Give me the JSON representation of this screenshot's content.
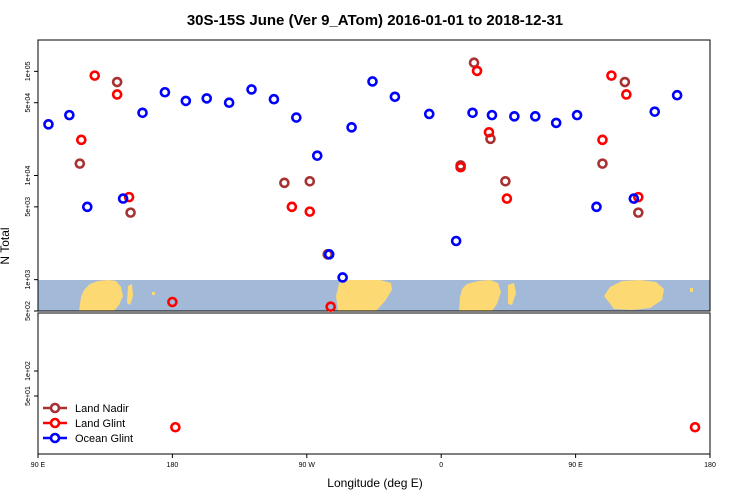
{
  "chart_data": {
    "type": "scatter",
    "title": "30S-15S June (Ver 9_ATom)   2016-01-01 to 2018-12-31",
    "xlabel": "Longitude (deg E)",
    "ylabel": "N Total",
    "x_ticks": [
      {
        "value": 90,
        "label": "90 E"
      },
      {
        "value": 180,
        "label": "180"
      },
      {
        "value": 270,
        "label": "90 W"
      },
      {
        "value": 360,
        "label": "0"
      },
      {
        "value": 450,
        "label": "90 E"
      },
      {
        "value": 540,
        "label": "180"
      }
    ],
    "xlim": [
      90,
      540
    ],
    "y_scale": "log",
    "upper_panel": {
      "ylim": [
        500,
        200000
      ],
      "y_ticks": [
        {
          "value": 500,
          "label": "5e+02"
        },
        {
          "value": 1000,
          "label": "1e+03"
        },
        {
          "value": 5000,
          "label": "5e+03"
        },
        {
          "value": 10000,
          "label": "1e+04"
        },
        {
          "value": 50000,
          "label": "5e+04"
        },
        {
          "value": 100000,
          "label": "1e+05"
        }
      ]
    },
    "lower_panel": {
      "ylim": [
        10,
        500
      ],
      "y_ticks": [
        {
          "value": 50,
          "label": "5e+01"
        },
        {
          "value": 100,
          "label": "1e+02"
        }
      ]
    },
    "series": [
      {
        "name": "Land Nadir",
        "color": "#a83232",
        "points": [
          [
            118,
            13000
          ],
          [
            143,
            79000
          ],
          [
            152,
            4400
          ],
          [
            255,
            8500
          ],
          [
            272,
            8800
          ],
          [
            284,
            1750
          ],
          [
            373,
            12500
          ],
          [
            382,
            121000
          ],
          [
            393,
            22500
          ],
          [
            403,
            8800
          ],
          [
            468,
            13000
          ],
          [
            483,
            79000
          ],
          [
            492,
            4400
          ]
        ]
      },
      {
        "name": "Land Glint",
        "color": "#ff0000",
        "points": [
          [
            119,
            22000
          ],
          [
            128,
            91000
          ],
          [
            143,
            60000
          ],
          [
            151,
            6200
          ],
          [
            180,
            610
          ],
          [
            182,
            21
          ],
          [
            260,
            5000
          ],
          [
            272,
            4500
          ],
          [
            286,
            550
          ],
          [
            373,
            12000
          ],
          [
            384,
            101000
          ],
          [
            392,
            26000
          ],
          [
            404,
            6000
          ],
          [
            468,
            22000
          ],
          [
            474,
            91000
          ],
          [
            484,
            60000
          ],
          [
            492,
            6200
          ],
          [
            530,
            21
          ]
        ]
      },
      {
        "name": "Ocean Glint",
        "color": "#0000ff",
        "points": [
          [
            97,
            31000
          ],
          [
            111,
            38000
          ],
          [
            123,
            5000
          ],
          [
            147,
            6000
          ],
          [
            160,
            40000
          ],
          [
            175,
            63000
          ],
          [
            189,
            52000
          ],
          [
            203,
            55000
          ],
          [
            218,
            50000
          ],
          [
            233,
            67000
          ],
          [
            248,
            54000
          ],
          [
            263,
            36000
          ],
          [
            277,
            15500
          ],
          [
            294,
            1050
          ],
          [
            285,
            1750
          ],
          [
            300,
            29000
          ],
          [
            314,
            80000
          ],
          [
            329,
            57000
          ],
          [
            352,
            39000
          ],
          [
            370,
            2350
          ],
          [
            381,
            40000
          ],
          [
            394,
            38000
          ],
          [
            409,
            37000
          ],
          [
            423,
            37000
          ],
          [
            437,
            32000
          ],
          [
            451,
            38000
          ],
          [
            464,
            5000
          ],
          [
            489,
            6000
          ],
          [
            503,
            41000
          ],
          [
            518,
            59000
          ]
        ]
      }
    ],
    "legend": {
      "position": "bottom-left",
      "entries": [
        "Land Nadir",
        "Land Glint",
        "Ocean Glint"
      ]
    },
    "map_colors": {
      "ocean": "#a3b9d8",
      "land": "#fdd974"
    }
  }
}
